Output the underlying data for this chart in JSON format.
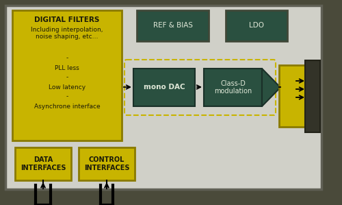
{
  "bg_outer": "#4a4a3a",
  "bg_inner": "#d0d0c8",
  "color_yellow": "#c8b400",
  "color_dark_green": "#2a5040",
  "color_text_light": "#e0e8d8",
  "color_text_dark": "#1a1a0a",
  "color_dashed": "#c8b400",
  "color_connector": "#333328",
  "ref_bias_text": "REF & BIAS",
  "ldo_text": "LDO",
  "mono_dac_text": "mono DAC",
  "class_d_text": "Class-D\nmodulation",
  "data_interfaces_text": "DATA\nINTERFACES",
  "control_interfaces_text": "CONTROL\nINTERFACES"
}
